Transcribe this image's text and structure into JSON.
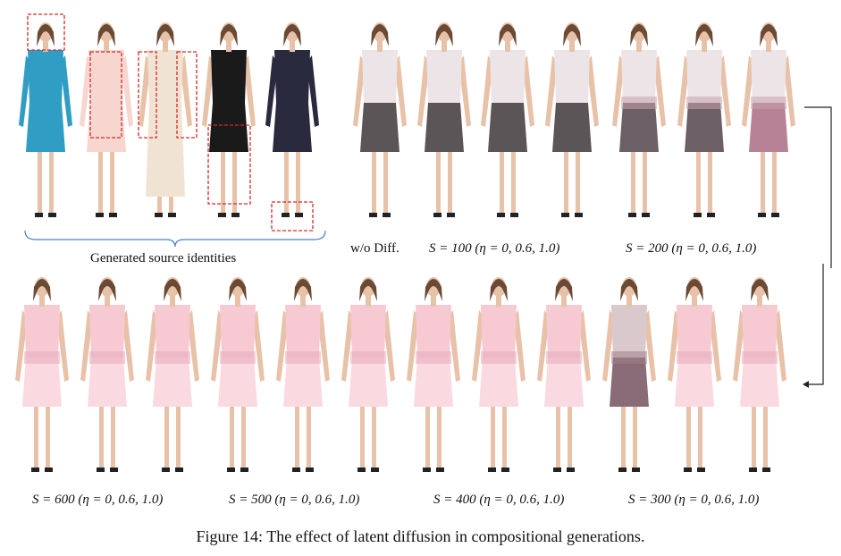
{
  "figure": {
    "caption": "Figure 14: The effect of latent diffusion in compositional generations.",
    "source_label": "Generated source identities",
    "top_labels": [
      "w/o Diff.",
      "S = 100 (η = 0, 0.6, 1.0)",
      "S = 200 (η = 0, 0.6, 1.0)"
    ],
    "bottom_labels": [
      "S = 600 (η = 0, 0.6, 1.0)",
      "S = 500 (η = 0, 0.6, 1.0)",
      "S = 400 (η = 0, 0.6, 1.0)",
      "S = 300 (η = 0, 0.6, 1.0)"
    ]
  },
  "colors": {
    "skin": "#e8c2a8",
    "hair": "#6b4a35",
    "pink": "#f6c9d3",
    "pink_light": "#fad9e0",
    "gray_skirt": "#5c5558",
    "blue_dress": "#2f9dc4",
    "black_dress": "#1a1a1a",
    "navy_dress": "#2a2a3e",
    "cream_dress": "#f1e3d3",
    "blush_dress": "#f7d6d0",
    "box_red": "#d62a2a",
    "brace_blue": "#4a7fc4"
  }
}
